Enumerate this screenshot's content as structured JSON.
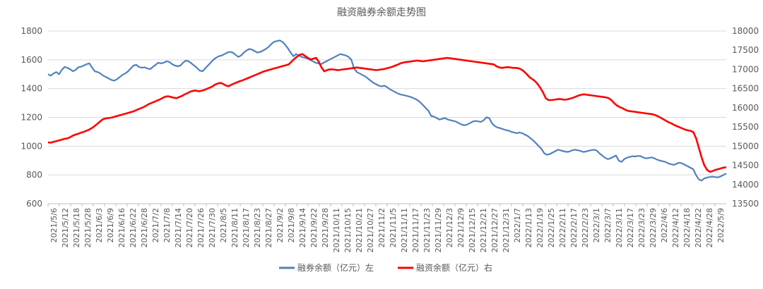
{
  "chart_data": {
    "type": "line",
    "title": "融资融券余额走势图",
    "y_left": {
      "ylim": [
        600,
        1800
      ],
      "ticks": [
        600,
        800,
        1000,
        1200,
        1400,
        1600,
        1800
      ]
    },
    "y_right": {
      "ylim": [
        13500,
        18000
      ],
      "ticks": [
        13500,
        14000,
        14500,
        15000,
        15500,
        16000,
        16500,
        17000,
        17500,
        18000
      ]
    },
    "x_tick_labels": [
      "2021/5/6",
      "2021/5/12",
      "2021/5/18",
      "2021/5/28",
      "2021/6/3",
      "2021/6/9",
      "2021/6/16",
      "2021/6/22",
      "2021/6/28",
      "2021/7/2",
      "2021/7/8",
      "2021/7/14",
      "2021/7/20",
      "2021/7/26",
      "2021/7/30",
      "2021/8/5",
      "2021/8/11",
      "2021/8/17",
      "2021/8/23",
      "2021/8/27",
      "2021/9/2",
      "2021/9/8",
      "2021/9/14",
      "2021/9/22",
      "2021/9/28",
      "2021/10/11",
      "2021/10/15",
      "2021/10/21",
      "2021/10/27",
      "2021/11/2",
      "2021/11/5",
      "2021/11/11",
      "2021/11/17",
      "2021/11/23",
      "2021/11/29",
      "2021/12/3",
      "2021/12/9",
      "2021/12/15",
      "2021/12/21",
      "2021/12/27",
      "2021/12/31",
      "2022/1/7",
      "2022/1/13",
      "2022/1/19",
      "2022/1/25",
      "2022/2/11",
      "2022/2/17",
      "2022/2/23",
      "2022/3/1",
      "2022/3/7",
      "2022/3/11",
      "2022/3/17",
      "2022/3/23",
      "2022/3/29",
      "2022/4/6",
      "2022/4/12",
      "2022/4/18",
      "2022/4/22",
      "2022/4/28",
      "2022/5/9"
    ],
    "legend": {
      "position": "bottom"
    },
    "series": [
      {
        "name": "融券余额（亿元）左",
        "axis": "left",
        "color": "#4f81bd",
        "values": [
          1500,
          1490,
          1505,
          1515,
          1500,
          1530,
          1550,
          1545,
          1535,
          1520,
          1530,
          1548,
          1552,
          1560,
          1570,
          1575,
          1545,
          1520,
          1515,
          1505,
          1490,
          1480,
          1470,
          1460,
          1455,
          1465,
          1480,
          1495,
          1505,
          1520,
          1540,
          1560,
          1565,
          1550,
          1545,
          1548,
          1540,
          1535,
          1550,
          1565,
          1580,
          1575,
          1580,
          1590,
          1585,
          1570,
          1560,
          1555,
          1560,
          1580,
          1595,
          1590,
          1575,
          1560,
          1545,
          1525,
          1520,
          1540,
          1560,
          1580,
          1600,
          1615,
          1625,
          1630,
          1640,
          1650,
          1655,
          1650,
          1635,
          1620,
          1630,
          1650,
          1665,
          1675,
          1670,
          1660,
          1650,
          1655,
          1665,
          1675,
          1690,
          1710,
          1725,
          1730,
          1735,
          1725,
          1705,
          1680,
          1650,
          1625,
          1640,
          1630,
          1620,
          1615,
          1610,
          1600,
          1590,
          1580,
          1575,
          1570,
          1580,
          1590,
          1600,
          1610,
          1620,
          1630,
          1640,
          1635,
          1630,
          1620,
          1600,
          1540,
          1515,
          1505,
          1495,
          1485,
          1470,
          1455,
          1440,
          1430,
          1420,
          1415,
          1420,
          1410,
          1395,
          1385,
          1375,
          1365,
          1358,
          1355,
          1350,
          1345,
          1338,
          1330,
          1320,
          1305,
          1285,
          1265,
          1245,
          1210,
          1205,
          1195,
          1185,
          1190,
          1195,
          1185,
          1180,
          1175,
          1170,
          1160,
          1150,
          1145,
          1150,
          1160,
          1170,
          1175,
          1172,
          1168,
          1180,
          1200,
          1195,
          1160,
          1140,
          1130,
          1125,
          1118,
          1112,
          1108,
          1100,
          1095,
          1090,
          1095,
          1090,
          1080,
          1070,
          1055,
          1040,
          1020,
          1000,
          980,
          950,
          940,
          945,
          955,
          965,
          975,
          970,
          965,
          960,
          962,
          970,
          975,
          972,
          968,
          960,
          962,
          968,
          972,
          975,
          970,
          950,
          935,
          920,
          910,
          915,
          925,
          935,
          900,
          890,
          910,
          920,
          925,
          930,
          928,
          932,
          930,
          920,
          915,
          918,
          922,
          915,
          905,
          900,
          895,
          890,
          880,
          875,
          870,
          878,
          885,
          880,
          870,
          860,
          850,
          840,
          800,
          770,
          760,
          775,
          782,
          785,
          788,
          785,
          783,
          790,
          800,
          810
        ]
      },
      {
        "name": "融资余额（亿元）右",
        "axis": "right",
        "color": "#ff0000",
        "values": [
          15100,
          15090,
          15110,
          15130,
          15150,
          15170,
          15190,
          15200,
          15230,
          15270,
          15300,
          15320,
          15350,
          15370,
          15400,
          15430,
          15470,
          15520,
          15580,
          15640,
          15700,
          15720,
          15730,
          15740,
          15760,
          15780,
          15800,
          15820,
          15840,
          15860,
          15880,
          15900,
          15930,
          15960,
          15990,
          16020,
          16060,
          16100,
          16130,
          16160,
          16190,
          16220,
          16260,
          16290,
          16300,
          16280,
          16260,
          16250,
          16280,
          16310,
          16350,
          16380,
          16420,
          16440,
          16450,
          16430,
          16440,
          16460,
          16490,
          16520,
          16550,
          16600,
          16630,
          16650,
          16620,
          16580,
          16560,
          16600,
          16630,
          16660,
          16690,
          16710,
          16740,
          16770,
          16800,
          16830,
          16860,
          16890,
          16920,
          16950,
          16970,
          16990,
          17010,
          17030,
          17050,
          17070,
          17090,
          17110,
          17130,
          17200,
          17270,
          17330,
          17380,
          17400,
          17350,
          17300,
          17260,
          17280,
          17300,
          17200,
          17050,
          16950,
          16980,
          17000,
          17000,
          16990,
          16980,
          16990,
          17000,
          17010,
          17020,
          17030,
          17040,
          17050,
          17040,
          17030,
          17020,
          17010,
          17000,
          16990,
          16980,
          16990,
          17000,
          17010,
          17030,
          17050,
          17070,
          17100,
          17130,
          17160,
          17180,
          17190,
          17200,
          17210,
          17220,
          17230,
          17220,
          17210,
          17220,
          17230,
          17240,
          17250,
          17260,
          17270,
          17280,
          17290,
          17300,
          17290,
          17280,
          17270,
          17260,
          17250,
          17240,
          17230,
          17220,
          17210,
          17200,
          17190,
          17180,
          17170,
          17160,
          17150,
          17140,
          17130,
          17080,
          17050,
          17040,
          17050,
          17060,
          17050,
          17040,
          17040,
          17030,
          17000,
          16950,
          16880,
          16800,
          16750,
          16700,
          16620,
          16520,
          16400,
          16250,
          16200,
          16200,
          16210,
          16220,
          16230,
          16220,
          16210,
          16220,
          16240,
          16260,
          16290,
          16320,
          16340,
          16350,
          16340,
          16330,
          16320,
          16310,
          16300,
          16290,
          16280,
          16270,
          16250,
          16200,
          16120,
          16060,
          16020,
          15990,
          15950,
          15920,
          15910,
          15900,
          15890,
          15880,
          15870,
          15860,
          15850,
          15840,
          15830,
          15810,
          15780,
          15740,
          15700,
          15660,
          15620,
          15590,
          15550,
          15520,
          15490,
          15460,
          15430,
          15410,
          15400,
          15360,
          15200,
          14950,
          14700,
          14500,
          14380,
          14330,
          14350,
          14380,
          14400,
          14420,
          14440,
          14450
        ]
      }
    ]
  }
}
